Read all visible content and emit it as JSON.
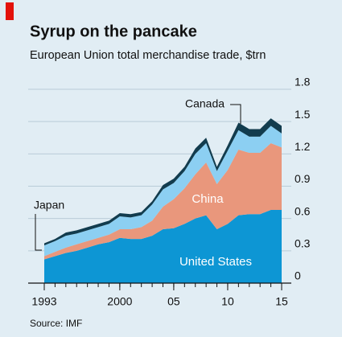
{
  "chart_data": {
    "type": "stacked-area",
    "title": "Syrup on the pancake",
    "subtitle": "European Union total merchandise trade, $trn",
    "source": "Source: IMF",
    "x": [
      1993,
      1994,
      1995,
      1996,
      1997,
      1998,
      1999,
      2000,
      2001,
      2002,
      2003,
      2004,
      2005,
      2006,
      2007,
      2008,
      2009,
      2010,
      2011,
      2012,
      2013,
      2014,
      2015
    ],
    "xlim": [
      1993,
      2015
    ],
    "xticks": [
      1993,
      2000,
      {
        "value": 2005,
        "label": "05"
      },
      {
        "value": 2010,
        "label": "10"
      },
      {
        "value": 2015,
        "label": "15"
      }
    ],
    "ylim": [
      0,
      1.8
    ],
    "yticks": [
      0,
      0.3,
      0.6,
      0.9,
      1.2,
      1.5,
      1.8
    ],
    "grid": true,
    "series": [
      {
        "name": "United States",
        "color": "#0d96d4",
        "values": [
          0.22,
          0.25,
          0.28,
          0.3,
          0.33,
          0.36,
          0.38,
          0.42,
          0.41,
          0.41,
          0.44,
          0.5,
          0.51,
          0.55,
          0.6,
          0.63,
          0.5,
          0.55,
          0.63,
          0.64,
          0.64,
          0.68,
          0.68
        ]
      },
      {
        "name": "China",
        "color": "#e9977c",
        "values": [
          0.03,
          0.04,
          0.05,
          0.06,
          0.06,
          0.06,
          0.07,
          0.08,
          0.09,
          0.11,
          0.14,
          0.21,
          0.27,
          0.33,
          0.41,
          0.49,
          0.42,
          0.5,
          0.61,
          0.57,
          0.57,
          0.62,
          0.58
        ]
      },
      {
        "name": "Japan",
        "color": "#8ccff2",
        "values": [
          0.1,
          0.1,
          0.11,
          0.1,
          0.1,
          0.1,
          0.1,
          0.12,
          0.11,
          0.11,
          0.15,
          0.16,
          0.15,
          0.16,
          0.19,
          0.18,
          0.12,
          0.18,
          0.18,
          0.15,
          0.15,
          0.16,
          0.13
        ]
      },
      {
        "name": "Canada",
        "color": "#123c4e",
        "values": [
          0.02,
          0.02,
          0.03,
          0.03,
          0.03,
          0.03,
          0.03,
          0.03,
          0.03,
          0.03,
          0.03,
          0.04,
          0.04,
          0.04,
          0.05,
          0.05,
          0.04,
          0.05,
          0.07,
          0.07,
          0.07,
          0.07,
          0.07
        ]
      }
    ]
  }
}
